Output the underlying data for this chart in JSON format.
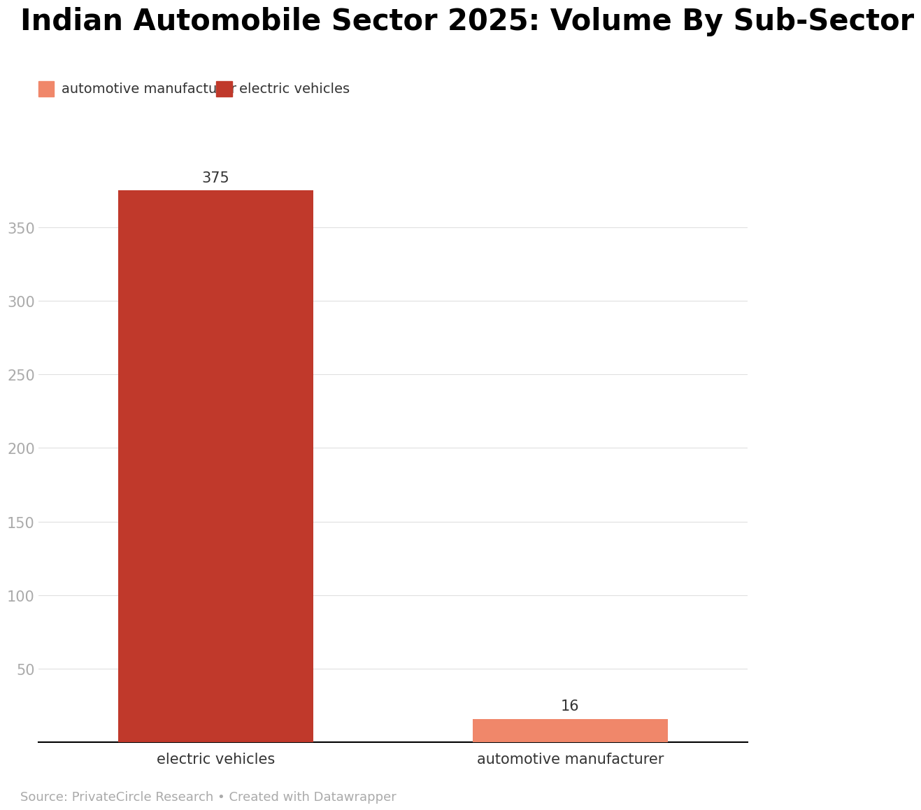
{
  "title": "Indian Automobile Sector 2025: Volume By Sub-Sector",
  "categories": [
    "electric vehicles",
    "automotive manufacturer"
  ],
  "values": [
    375,
    16
  ],
  "bar_colors": [
    "#c0392b",
    "#f0876a"
  ],
  "legend_labels": [
    "automotive manufacturer",
    "electric vehicles"
  ],
  "legend_colors": [
    "#f0876a",
    "#c0392b"
  ],
  "ylim": [
    0,
    400
  ],
  "yticks": [
    50,
    100,
    150,
    200,
    250,
    300,
    350
  ],
  "source_text": "Source: PrivateCircle Research • Created with Datawrapper",
  "title_fontsize": 30,
  "tick_fontsize": 15,
  "label_fontsize": 15,
  "bar_label_fontsize": 15,
  "legend_fontsize": 14,
  "source_fontsize": 13,
  "background_color": "#ffffff",
  "tick_color": "#aaaaaa",
  "label_color": "#333333",
  "bar_width": 0.55
}
